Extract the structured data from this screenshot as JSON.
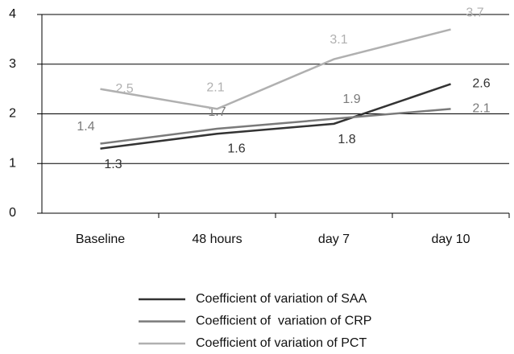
{
  "chart_data": {
    "type": "line",
    "categories": [
      "Baseline",
      "48 hours",
      "day 7",
      "day 10"
    ],
    "series": [
      {
        "name": "Coefficient of variation of SAA",
        "color": "#333333",
        "values": [
          1.3,
          1.6,
          1.8,
          2.6
        ]
      },
      {
        "name": "Coefficient of  variation of CRP",
        "color": "#7a7a7a",
        "values": [
          1.4,
          1.7,
          1.9,
          2.1
        ]
      },
      {
        "name": "Coefficient of variation of PCT",
        "color": "#b0b0b0",
        "values": [
          2.5,
          2.1,
          3.1,
          3.7
        ]
      }
    ],
    "ylim": [
      0,
      4
    ],
    "yticks": [
      0,
      1,
      2,
      3,
      4
    ],
    "grid": true
  }
}
